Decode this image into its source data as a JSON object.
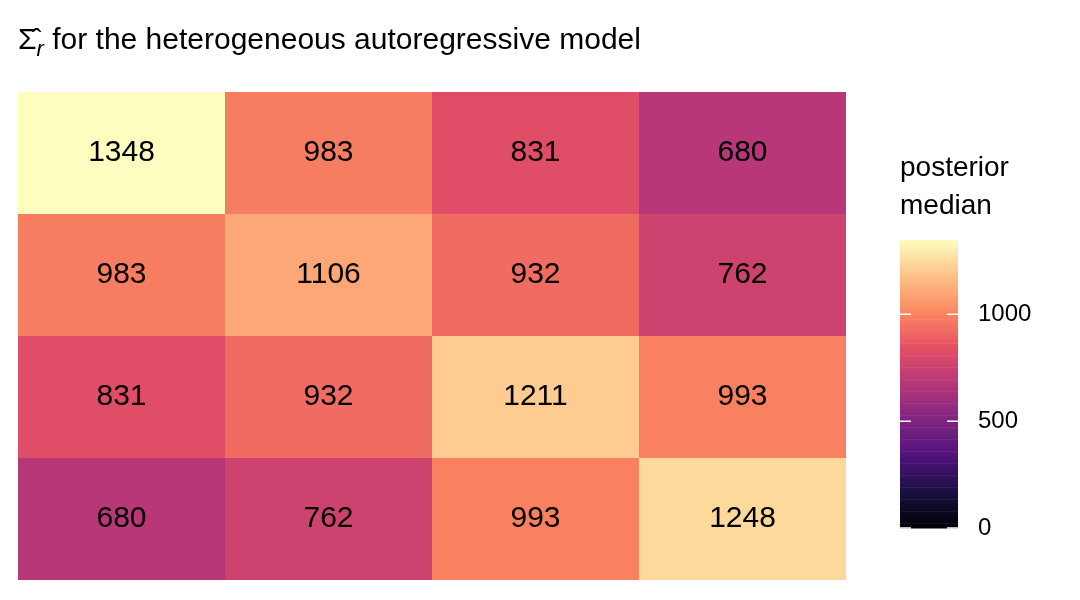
{
  "chart_data": {
    "type": "heatmap",
    "title": "Σ̂$_{r}$ for the heterogeneous autoregressive model",
    "clabel": "posterior median",
    "categories": [
      null,
      null,
      null,
      null
    ],
    "y_categories": [
      null,
      null,
      null,
      null
    ],
    "cells": [
      [
        1348,
        983,
        831,
        680
      ],
      [
        983,
        1106,
        932,
        762
      ],
      [
        831,
        932,
        1211,
        993
      ],
      [
        680,
        762,
        993,
        1248
      ]
    ],
    "data_labels": true,
    "clim": [
      0,
      1348
    ],
    "cticks": [
      0,
      500,
      1000
    ]
  }
}
